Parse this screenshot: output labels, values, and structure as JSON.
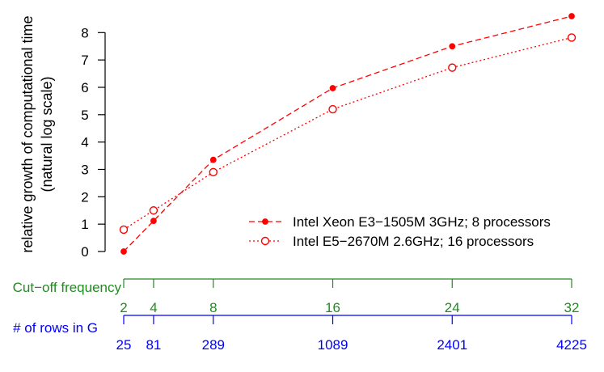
{
  "chart_data": {
    "type": "line",
    "ylabel_line1": "relative growth of computational time",
    "ylabel_line2": "(natural log scale)",
    "ylim": [
      0,
      8.6
    ],
    "yticks": [
      "0",
      "1",
      "2",
      "3",
      "4",
      "5",
      "6",
      "7",
      "8"
    ],
    "x": [
      2,
      4,
      8,
      16,
      24,
      32
    ],
    "series": [
      {
        "name": "Intel Xeon E3−1505M 3GHz; 8 processors",
        "values": [
          0.0,
          1.12,
          3.35,
          5.97,
          7.5,
          8.6
        ],
        "color": "#ff0000",
        "marker": "filled-circle",
        "line_style": "dashed"
      },
      {
        "name": "Intel E5−2670M 2.6GHz; 16 processors",
        "values": [
          0.8,
          1.5,
          2.9,
          5.2,
          6.72,
          7.82
        ],
        "color": "#ff0000",
        "marker": "open-circle",
        "line_style": "dotted"
      }
    ],
    "legend_position": "bottom-right",
    "secondary_axes": [
      {
        "label": "Cut−off frequency",
        "ticks": [
          "2",
          "4",
          "8",
          "16",
          "24",
          "32"
        ],
        "color": "#228b22"
      },
      {
        "label": "# of rows in G",
        "ticks": [
          "25",
          "81",
          "289",
          "1089",
          "2401",
          "4225"
        ],
        "color": "#0000ff"
      }
    ]
  }
}
